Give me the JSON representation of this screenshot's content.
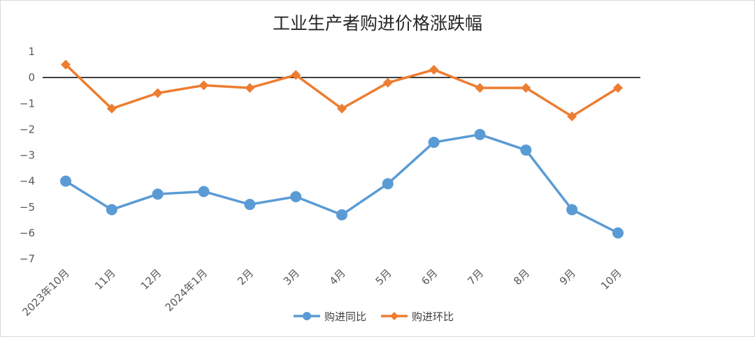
{
  "chart_data": {
    "type": "line",
    "title": "工业生产者购进价格涨跌幅",
    "xlabel": "",
    "ylabel": "",
    "ylim": [
      -7,
      1
    ],
    "y_ticks": [
      "1",
      "0",
      "−1",
      "−2",
      "−3",
      "−4",
      "−5",
      "−6",
      "−7"
    ],
    "y_tick_values": [
      1,
      0,
      -1,
      -2,
      -3,
      -4,
      -5,
      -6,
      -7
    ],
    "categories": [
      "2023年10月",
      "11月",
      "12月",
      "2024年1月",
      "2月",
      "3月",
      "4月",
      "5月",
      "6月",
      "7月",
      "8月",
      "9月",
      "10月"
    ],
    "series": [
      {
        "name": "购进同比",
        "color": "#5b9bd5",
        "marker": "circle",
        "values": [
          -4.0,
          -5.1,
          -4.5,
          -4.4,
          -4.9,
          -4.6,
          -5.3,
          -4.1,
          -2.5,
          -2.2,
          -2.8,
          -5.1,
          -6.0
        ]
      },
      {
        "name": "购进环比",
        "color": "#ed7d31",
        "marker": "diamond",
        "values": [
          0.5,
          -1.2,
          -0.6,
          -0.3,
          -0.4,
          0.1,
          -1.2,
          -0.2,
          0.3,
          -0.4,
          -0.4,
          -1.5,
          -0.4
        ]
      }
    ],
    "grid": false,
    "legend": "bottom"
  }
}
